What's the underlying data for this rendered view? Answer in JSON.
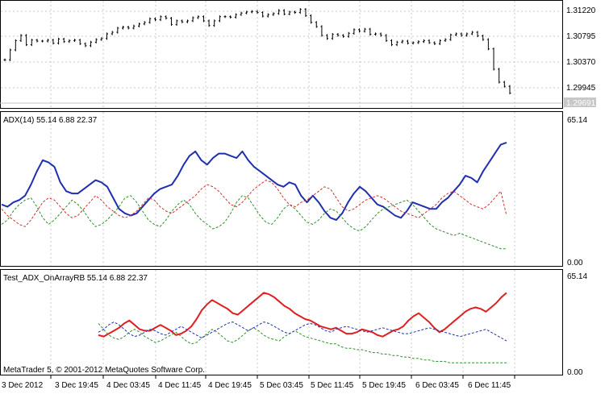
{
  "chart_data": [
    {
      "type": "ohlc",
      "title": "",
      "y_ticks": [
        "1.31220",
        "1.30795",
        "1.30370",
        "1.29945"
      ],
      "ylim": [
        1.2945,
        1.3145
      ],
      "current_price": "1.29691",
      "close_approx": [
        1.3033,
        1.3052,
        1.307,
        1.308,
        1.3062,
        1.3071,
        1.3069,
        1.3069,
        1.3071,
        1.3065,
        1.3073,
        1.3068,
        1.307,
        1.3071,
        1.3064,
        1.306,
        1.3067,
        1.3072,
        1.3074,
        1.3083,
        1.3086,
        1.3094,
        1.3096,
        1.3094,
        1.3098,
        1.3102,
        1.3105,
        1.3112,
        1.311,
        1.3116,
        1.3113,
        1.3101,
        1.3108,
        1.3106,
        1.3108,
        1.3114,
        1.3116,
        1.3108,
        1.3099,
        1.3108,
        1.3116,
        1.3116,
        1.3115,
        1.312,
        1.3123,
        1.3125,
        1.3126,
        1.3124,
        1.3117,
        1.312,
        1.3122,
        1.3128,
        1.3121,
        1.3125,
        1.3124,
        1.313,
        1.3118,
        1.3105,
        1.3097,
        1.308,
        1.3074,
        1.3082,
        1.308,
        1.3078,
        1.3084,
        1.3091,
        1.3088,
        1.3092,
        1.3082,
        1.3083,
        1.308,
        1.307,
        1.3062,
        1.3067,
        1.3069,
        1.3065,
        1.3066,
        1.3068,
        1.307,
        1.3066,
        1.3064,
        1.307,
        1.3072,
        1.3081,
        1.3083,
        1.308,
        1.3083,
        1.3086,
        1.3079,
        1.3072,
        1.3054,
        1.3015,
        1.299,
        1.2982,
        1.2969
      ]
    },
    {
      "type": "line",
      "indicator_label": "ADX(14) 55.14 6.88 22.37",
      "y_ticks": [
        "65.14",
        "0.00"
      ],
      "ylim": [
        0,
        65.14
      ],
      "series": [
        {
          "color": "#1f2fb0",
          "style": "solid",
          "values": [
            27,
            26,
            28,
            29,
            31,
            36,
            42,
            47,
            46,
            44,
            37,
            33,
            32,
            32,
            34,
            36,
            38,
            37,
            35,
            30,
            25,
            23,
            22,
            23,
            26,
            29,
            32,
            34,
            35,
            36,
            40,
            45,
            49,
            51,
            47,
            45,
            48,
            50,
            50,
            49,
            48,
            51,
            47,
            44,
            42,
            40,
            38,
            36,
            35,
            37,
            36,
            31,
            28,
            31,
            28,
            24,
            21,
            20,
            23,
            28,
            32,
            35,
            33,
            30,
            27,
            26,
            24,
            22,
            21,
            24,
            28,
            27,
            26,
            25,
            25,
            28,
            30,
            33,
            36,
            40,
            39,
            37,
            42,
            46,
            50,
            54,
            55
          ]
        },
        {
          "color": "#2f8f2f",
          "style": "dashed",
          "values": [
            18,
            20,
            24,
            27,
            29,
            30,
            26,
            21,
            18,
            20,
            23,
            26,
            29,
            27,
            24,
            20,
            17,
            18,
            20,
            23,
            26,
            30,
            31,
            28,
            24,
            20,
            18,
            17,
            20,
            24,
            27,
            29,
            27,
            23,
            20,
            18,
            16,
            17,
            19,
            23,
            28,
            31,
            30,
            26,
            22,
            19,
            18,
            21,
            25,
            27,
            25,
            22,
            19,
            18,
            20,
            23,
            25,
            24,
            21,
            18,
            16,
            15,
            17,
            20,
            23,
            25,
            26,
            27,
            28,
            29,
            27,
            24,
            21,
            18,
            16,
            15,
            14,
            13,
            14,
            13,
            12,
            11,
            10,
            9,
            8,
            7,
            7
          ]
        },
        {
          "color": "#d03030",
          "style": "dashed",
          "values": [
            25,
            22,
            20,
            18,
            17,
            20,
            24,
            28,
            30,
            29,
            26,
            23,
            21,
            22,
            25,
            28,
            31,
            29,
            26,
            24,
            22,
            21,
            22,
            24,
            27,
            30,
            29,
            26,
            24,
            23,
            25,
            27,
            29,
            31,
            34,
            36,
            35,
            33,
            30,
            27,
            26,
            28,
            31,
            34,
            36,
            38,
            37,
            34,
            30,
            27,
            26,
            28,
            29,
            31,
            33,
            35,
            34,
            30,
            26,
            24,
            25,
            27,
            29,
            30,
            31,
            30,
            28,
            26,
            24,
            23,
            22,
            21,
            23,
            25,
            27,
            30,
            32,
            33,
            31,
            29,
            27,
            26,
            25,
            27,
            30,
            33,
            22
          ]
        }
      ]
    },
    {
      "type": "line",
      "indicator_label": "Test_ADX_OnArrayRB 55.14 6.88 22.37",
      "y_ticks": [
        "65.14",
        "0.00"
      ],
      "ylim": [
        0,
        65.14
      ],
      "series": [
        {
          "color": "#e02020",
          "style": "solid",
          "values": [
            26,
            25,
            27,
            29,
            31,
            34,
            36,
            33,
            30,
            29,
            29,
            31,
            33,
            31,
            29,
            26,
            27,
            29,
            32,
            37,
            43,
            47,
            50,
            48,
            46,
            44,
            41,
            40,
            43,
            46,
            49,
            52,
            55,
            54,
            52,
            49,
            46,
            44,
            41,
            39,
            37,
            36,
            34,
            32,
            31,
            30,
            31,
            29,
            27,
            27,
            28,
            30,
            29,
            28,
            26,
            25,
            27,
            29,
            30,
            32,
            36,
            39,
            41,
            38,
            35,
            31,
            28,
            30,
            33,
            36,
            39,
            42,
            44,
            45,
            44,
            42,
            45,
            48,
            52,
            55
          ]
        },
        {
          "color": "#2f8f2f",
          "style": "dashed",
          "values": [
            34,
            30,
            26,
            24,
            23,
            25,
            28,
            30,
            28,
            25,
            23,
            21,
            22,
            24,
            26,
            28,
            25,
            22,
            20,
            21,
            24,
            27,
            30,
            28,
            25,
            22,
            21,
            23,
            26,
            29,
            31,
            29,
            26,
            24,
            23,
            22,
            25,
            27,
            29,
            27,
            25,
            24,
            23,
            22,
            21,
            20,
            20,
            18,
            17,
            17,
            16,
            16,
            15,
            14,
            14,
            13,
            13,
            12,
            12,
            11,
            11,
            10,
            10,
            9,
            9,
            8,
            8,
            8,
            7,
            7,
            7,
            7,
            7,
            7,
            7,
            7,
            7,
            7,
            7,
            7
          ]
        },
        {
          "color": "#1f2fb0",
          "style": "dashed",
          "values": [
            28,
            30,
            33,
            35,
            33,
            30,
            27,
            25,
            26,
            28,
            30,
            29,
            27,
            26,
            28,
            30,
            32,
            30,
            28,
            26,
            24,
            26,
            28,
            30,
            32,
            34,
            35,
            33,
            31,
            29,
            31,
            33,
            35,
            34,
            32,
            30,
            28,
            27,
            29,
            31,
            33,
            34,
            33,
            31,
            29,
            28,
            30,
            31,
            32,
            31,
            30,
            29,
            28,
            29,
            30,
            31,
            30,
            29,
            28,
            27,
            27,
            28,
            29,
            30,
            31,
            30,
            29,
            28,
            27,
            26,
            25,
            26,
            27,
            28,
            29,
            30,
            28,
            26,
            24,
            22
          ]
        }
      ]
    }
  ],
  "x_axis": {
    "labels": [
      "3 Dec 2012",
      "3 Dec 19:45",
      "4 Dec 03:45",
      "4 Dec 11:45",
      "4 Dec 19:45",
      "5 Dec 03:45",
      "5 Dec 11:45",
      "5 Dec 19:45",
      "6 Dec 03:45",
      "6 Dec 11:45"
    ]
  },
  "footer": {
    "copyright": "MetaTrader 5, © 2001-2012 MetaQuotes Software Corp."
  }
}
